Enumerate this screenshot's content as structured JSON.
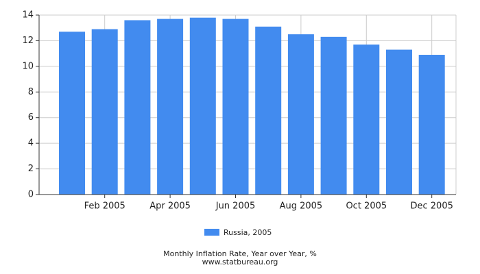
{
  "chart_data": {
    "type": "bar",
    "title": "Monthly Inflation Rate, Year over Year, %",
    "subtitle": "www.statbureau.org",
    "categories": [
      null,
      "Feb 2005",
      null,
      "Apr 2005",
      null,
      "Jun 2005",
      null,
      "Aug 2005",
      null,
      "Oct 2005",
      null,
      "Dec 2005"
    ],
    "series": [
      {
        "name": "Russia, 2005",
        "color": "#428bef",
        "values": [
          12.7,
          12.9,
          13.6,
          13.7,
          13.8,
          13.7,
          13.1,
          12.5,
          12.3,
          11.7,
          11.3,
          10.9
        ]
      }
    ],
    "ylim": [
      0,
      14
    ],
    "yticks": [
      0,
      2,
      4,
      6,
      8,
      10,
      12,
      14
    ],
    "grid": true,
    "legend": "bottom"
  }
}
